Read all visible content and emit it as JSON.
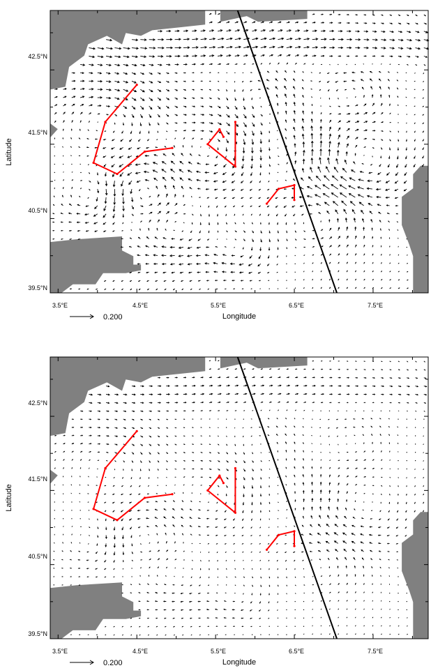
{
  "colors": {
    "land": "#808080",
    "vectors": "#000000",
    "drifter_tracks": "#ff0000",
    "section_line": "#000000",
    "frame": "#000000"
  },
  "axes": {
    "xlabel": "Longitude",
    "ylabel": "Latitude",
    "lon_range": [
      3.4,
      8.2
    ],
    "lat_range": [
      39.5,
      43.3
    ],
    "x_ticks": [
      "3.5°E",
      "4.5°E",
      "5.5°E",
      "6.5°E",
      "7.5°E"
    ],
    "y_ticks": [
      "42.5°N",
      "41.5°N",
      "40.5°N",
      "39.5°N"
    ]
  },
  "reference_vector": {
    "value": "0.200"
  },
  "panels": [
    {
      "id": "top",
      "vector_strength": 1.0
    },
    {
      "id": "bottom",
      "vector_strength": 0.55
    }
  ],
  "chart_data": [
    {
      "type": "vector-field-map",
      "panel": "top",
      "xlabel": "Longitude",
      "ylabel": "Latitude",
      "xlim": [
        3.4,
        8.2
      ],
      "ylim": [
        39.5,
        43.3
      ],
      "reference_vector": 0.2,
      "section_line": [
        [
          5.78,
          43.3
        ],
        [
          7.04,
          39.5
        ]
      ],
      "drifter_tracks": [
        [
          [
            4.5,
            42.3
          ],
          [
            4.1,
            41.8
          ],
          [
            3.95,
            41.25
          ],
          [
            4.25,
            41.1
          ],
          [
            4.6,
            41.4
          ],
          [
            4.95,
            41.45
          ]
        ],
        [
          [
            5.75,
            41.8
          ],
          [
            5.75,
            41.2
          ],
          [
            5.4,
            41.5
          ],
          [
            5.55,
            41.7
          ],
          [
            5.6,
            41.6
          ]
        ],
        [
          [
            6.15,
            40.7
          ],
          [
            6.3,
            40.9
          ],
          [
            6.5,
            40.95
          ],
          [
            6.5,
            40.75
          ]
        ]
      ]
    },
    {
      "type": "vector-field-map",
      "panel": "bottom",
      "xlabel": "Longitude",
      "ylabel": "Latitude",
      "xlim": [
        3.4,
        8.2
      ],
      "ylim": [
        39.5,
        43.3
      ],
      "reference_vector": 0.2,
      "section_line": [
        [
          5.78,
          43.3
        ],
        [
          7.04,
          39.5
        ]
      ],
      "drifter_tracks": [
        [
          [
            4.5,
            42.3
          ],
          [
            4.1,
            41.8
          ],
          [
            3.95,
            41.25
          ],
          [
            4.25,
            41.1
          ],
          [
            4.6,
            41.4
          ],
          [
            4.95,
            41.45
          ]
        ],
        [
          [
            5.75,
            41.8
          ],
          [
            5.75,
            41.2
          ],
          [
            5.4,
            41.5
          ],
          [
            5.55,
            41.7
          ],
          [
            5.6,
            41.6
          ]
        ],
        [
          [
            6.15,
            40.7
          ],
          [
            6.3,
            40.9
          ],
          [
            6.5,
            40.95
          ],
          [
            6.5,
            40.75
          ]
        ]
      ]
    }
  ]
}
